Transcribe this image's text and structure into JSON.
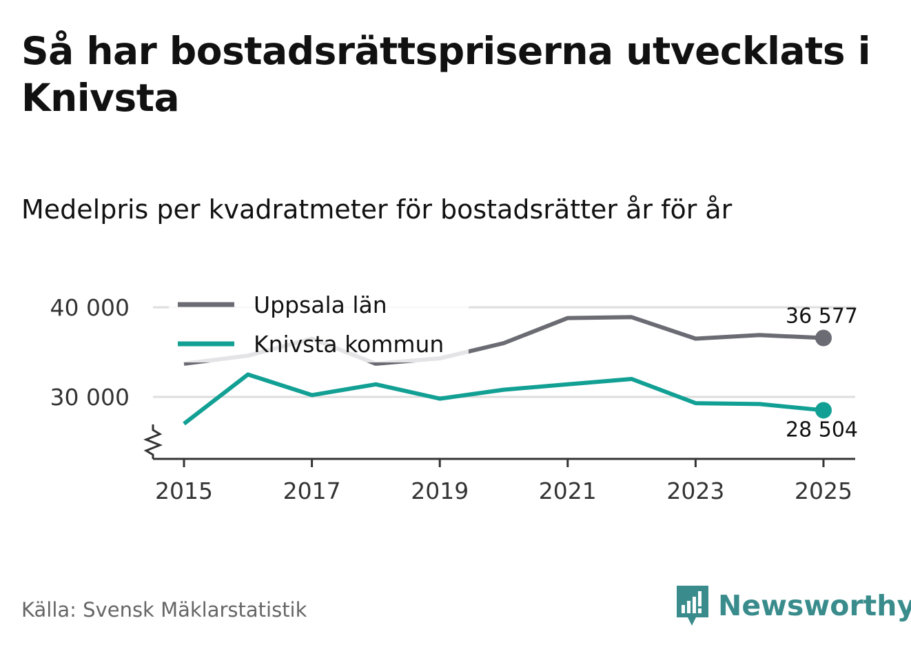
{
  "title": "Så har bostadsrättspriserna utvecklats i Knivsta",
  "subtitle": "Medelpris per kvadratmeter för bostadsrätter år för år",
  "source": "Källa: Svensk Mäklarstatistik",
  "brand": {
    "name": "Newsworthy",
    "color": "#3a8c8c",
    "icon": "newsworthy-logo-icon"
  },
  "chart_data": {
    "type": "line",
    "x": [
      2015,
      2016,
      2017,
      2018,
      2019,
      2020,
      2021,
      2022,
      2023,
      2024,
      2025
    ],
    "series": [
      {
        "name": "Uppsala län",
        "color": "#6b6b73",
        "values": [
          33700,
          34600,
          36500,
          33700,
          34300,
          36000,
          38800,
          38900,
          36500,
          36900,
          36577
        ]
      },
      {
        "name": "Knivsta kommun",
        "color": "#12a094",
        "values": [
          27000,
          32500,
          30200,
          31400,
          29800,
          30800,
          31400,
          32000,
          29300,
          29200,
          28504
        ]
      }
    ],
    "end_labels": [
      "36 577",
      "28 504"
    ],
    "yticks": [
      30000,
      40000
    ],
    "ytick_labels": [
      "30 000",
      "40 000"
    ],
    "xticks": [
      2015,
      2017,
      2019,
      2021,
      2023,
      2025
    ],
    "xtick_labels": [
      "2015",
      "2017",
      "2019",
      "2021",
      "2023",
      "2025"
    ],
    "ylim": [
      23000,
      41000
    ],
    "xlabel": "",
    "ylabel": "",
    "legend": "top-left"
  }
}
